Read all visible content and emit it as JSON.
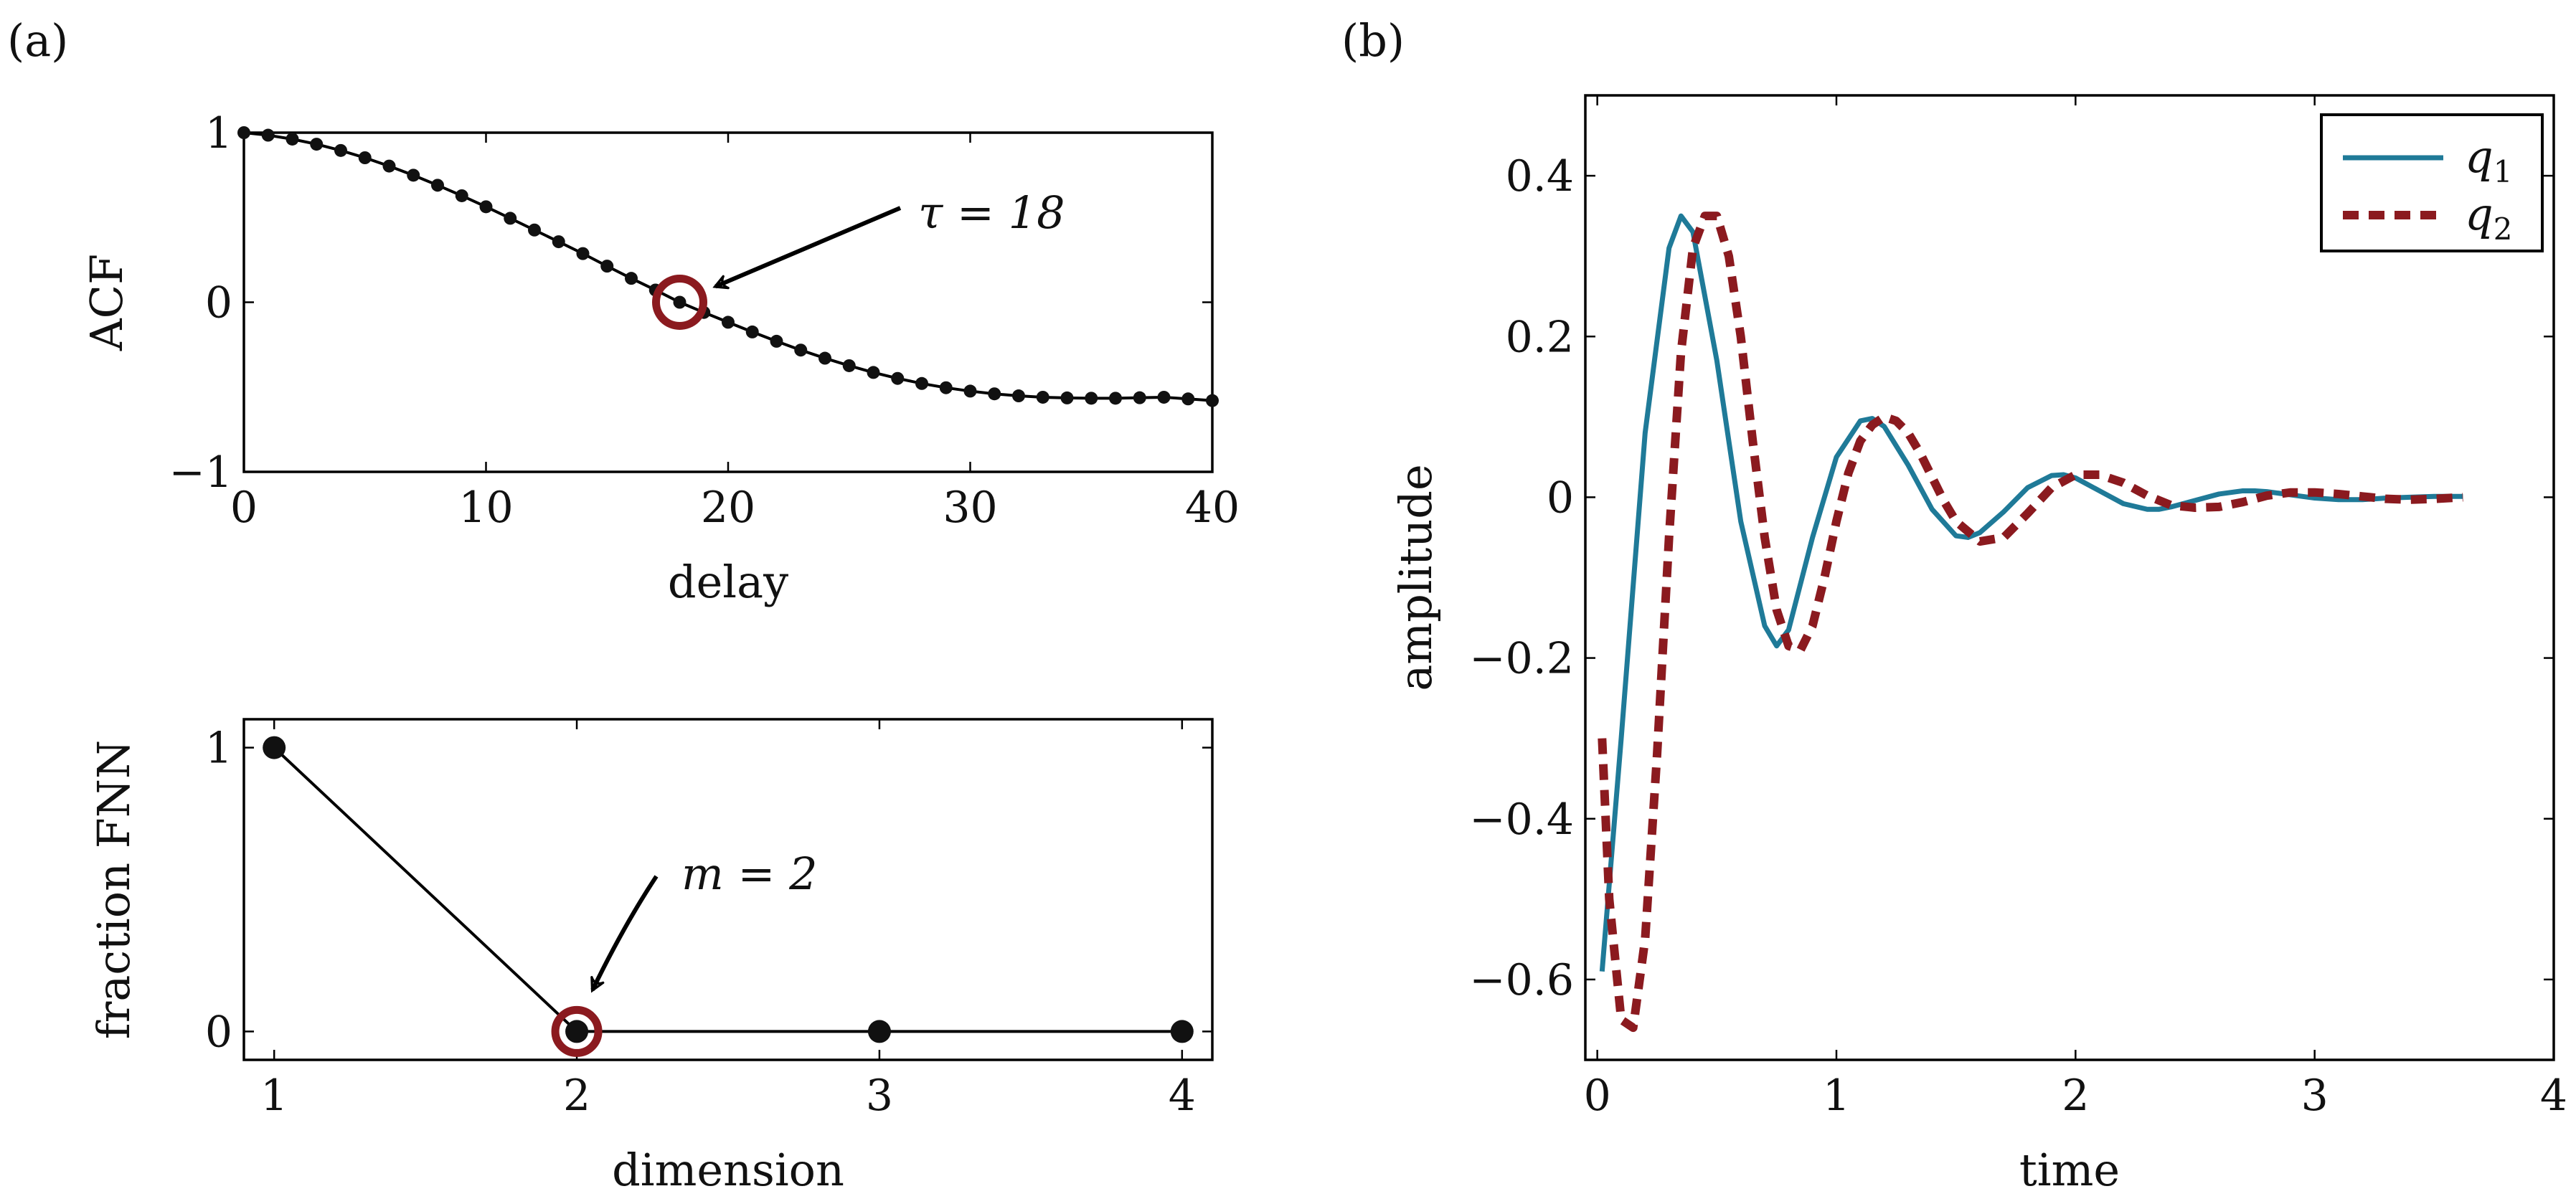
{
  "panel_labels": {
    "a": "(a)",
    "b": "(b)"
  },
  "colors": {
    "q1": "#1f7a98",
    "q2": "#8b1a1f",
    "marker": "#111111",
    "highlight": "#8b1a1f"
  },
  "chart_data": [
    {
      "id": "acf",
      "type": "line",
      "title": "",
      "xlabel": "delay",
      "ylabel": "ACF",
      "xlim": [
        0,
        40
      ],
      "ylim": [
        -1,
        1
      ],
      "xticks": [
        0,
        10,
        20,
        30,
        40
      ],
      "yticks": [
        -1,
        0,
        1
      ],
      "xtick_labels": [
        "0",
        "10",
        "20",
        "30",
        "40"
      ],
      "ytick_labels": [
        "−1",
        "0",
        "1"
      ],
      "x": [
        0,
        1,
        2,
        3,
        4,
        5,
        6,
        7,
        8,
        9,
        10,
        11,
        12,
        13,
        14,
        15,
        16,
        17,
        18,
        19,
        20,
        21,
        22,
        23,
        24,
        25,
        26,
        27,
        28,
        29,
        30,
        31,
        32,
        33,
        34,
        35,
        36,
        37,
        38,
        39,
        40
      ],
      "values": [
        1.0,
        0.985,
        0.962,
        0.932,
        0.895,
        0.852,
        0.803,
        0.749,
        0.69,
        0.628,
        0.563,
        0.495,
        0.426,
        0.357,
        0.287,
        0.213,
        0.141,
        0.072,
        0.0,
        -0.06,
        -0.118,
        -0.175,
        -0.23,
        -0.282,
        -0.33,
        -0.374,
        -0.414,
        -0.449,
        -0.479,
        -0.504,
        -0.524,
        -0.54,
        -0.552,
        -0.56,
        -0.564,
        -0.566,
        -0.566,
        -0.563,
        -0.56,
        -0.57,
        -0.58
      ],
      "highlight": {
        "x": 18,
        "y": 0
      },
      "annotation": {
        "text": "τ = 18",
        "arrow_to": [
          18,
          0
        ]
      }
    },
    {
      "id": "fnn",
      "type": "line",
      "title": "",
      "xlabel": "dimension",
      "ylabel": "fraction FNN",
      "xlim": [
        0.9,
        4.1
      ],
      "ylim": [
        -0.1,
        1.1
      ],
      "xticks": [
        1,
        2,
        3,
        4
      ],
      "yticks": [
        0,
        1
      ],
      "xtick_labels": [
        "1",
        "2",
        "3",
        "4"
      ],
      "ytick_labels": [
        "0",
        "1"
      ],
      "x": [
        1,
        2,
        3,
        4
      ],
      "values": [
        1,
        0,
        0,
        0
      ],
      "highlight": {
        "x": 2,
        "y": 0
      },
      "annotation": {
        "text": "m = 2",
        "arrow_to": [
          2,
          0
        ]
      }
    },
    {
      "id": "amplitude",
      "type": "line",
      "title": "",
      "xlabel": "time",
      "ylabel": "amplitude",
      "xlim": [
        -0.05,
        4
      ],
      "ylim": [
        -0.7,
        0.5
      ],
      "xticks": [
        0,
        1,
        2,
        3,
        4
      ],
      "yticks": [
        -0.6,
        -0.4,
        -0.2,
        0,
        0.2,
        0.4
      ],
      "xtick_labels": [
        "0",
        "1",
        "2",
        "3",
        "4"
      ],
      "ytick_labels": [
        "−0.6",
        "−0.4",
        "−0.2",
        "0",
        "0.2",
        "0.4"
      ],
      "legend": {
        "position": "top-right",
        "entries": [
          "q1",
          "q2"
        ]
      },
      "series": [
        {
          "name": "q1",
          "style": "solid",
          "color": "#1f7a98",
          "x": [
            0.02,
            0.1,
            0.2,
            0.3,
            0.35,
            0.4,
            0.5,
            0.6,
            0.7,
            0.75,
            0.8,
            0.9,
            1.0,
            1.1,
            1.15,
            1.2,
            1.3,
            1.4,
            1.5,
            1.55,
            1.6,
            1.7,
            1.8,
            1.9,
            1.95,
            2.0,
            2.1,
            2.2,
            2.3,
            2.35,
            2.4,
            2.5,
            2.6,
            2.7,
            2.75,
            2.8,
            2.9,
            3.0,
            3.1,
            3.2,
            3.3,
            3.4,
            3.5,
            3.6,
            3.62
          ],
          "values": [
            -0.59,
            -0.3,
            0.08,
            0.31,
            0.35,
            0.33,
            0.17,
            -0.03,
            -0.16,
            -0.185,
            -0.165,
            -0.05,
            0.05,
            0.095,
            0.098,
            0.088,
            0.04,
            -0.015,
            -0.048,
            -0.05,
            -0.044,
            -0.018,
            0.012,
            0.027,
            0.028,
            0.024,
            0.008,
            -0.008,
            -0.015,
            -0.015,
            -0.012,
            -0.004,
            0.004,
            0.008,
            0.008,
            0.007,
            0.003,
            -0.001,
            -0.003,
            -0.003,
            -0.001,
            0.0,
            0.001,
            0.001,
            0.001
          ]
        },
        {
          "name": "q2",
          "style": "dashed",
          "color": "#8b1a1f",
          "x": [
            0.02,
            0.05,
            0.1,
            0.15,
            0.2,
            0.25,
            0.3,
            0.35,
            0.4,
            0.45,
            0.5,
            0.55,
            0.6,
            0.65,
            0.7,
            0.75,
            0.8,
            0.85,
            0.9,
            0.95,
            1.0,
            1.05,
            1.1,
            1.15,
            1.2,
            1.25,
            1.3,
            1.35,
            1.4,
            1.45,
            1.5,
            1.6,
            1.7,
            1.8,
            1.9,
            2.0,
            2.1,
            2.2,
            2.3,
            2.4,
            2.5,
            2.6,
            2.7,
            2.8,
            2.9,
            3.0,
            3.1,
            3.2,
            3.3,
            3.4,
            3.5,
            3.62
          ],
          "values": [
            -0.3,
            -0.5,
            -0.65,
            -0.66,
            -0.55,
            -0.32,
            -0.05,
            0.18,
            0.31,
            0.35,
            0.35,
            0.3,
            0.2,
            0.07,
            -0.05,
            -0.14,
            -0.185,
            -0.19,
            -0.16,
            -0.1,
            -0.03,
            0.03,
            0.07,
            0.09,
            0.1,
            0.095,
            0.08,
            0.055,
            0.025,
            -0.005,
            -0.03,
            -0.055,
            -0.05,
            -0.02,
            0.012,
            0.028,
            0.028,
            0.018,
            0.002,
            -0.01,
            -0.013,
            -0.012,
            -0.006,
            0.002,
            0.006,
            0.006,
            0.004,
            0.001,
            -0.002,
            -0.003,
            -0.002,
            0.0
          ]
        }
      ]
    }
  ]
}
